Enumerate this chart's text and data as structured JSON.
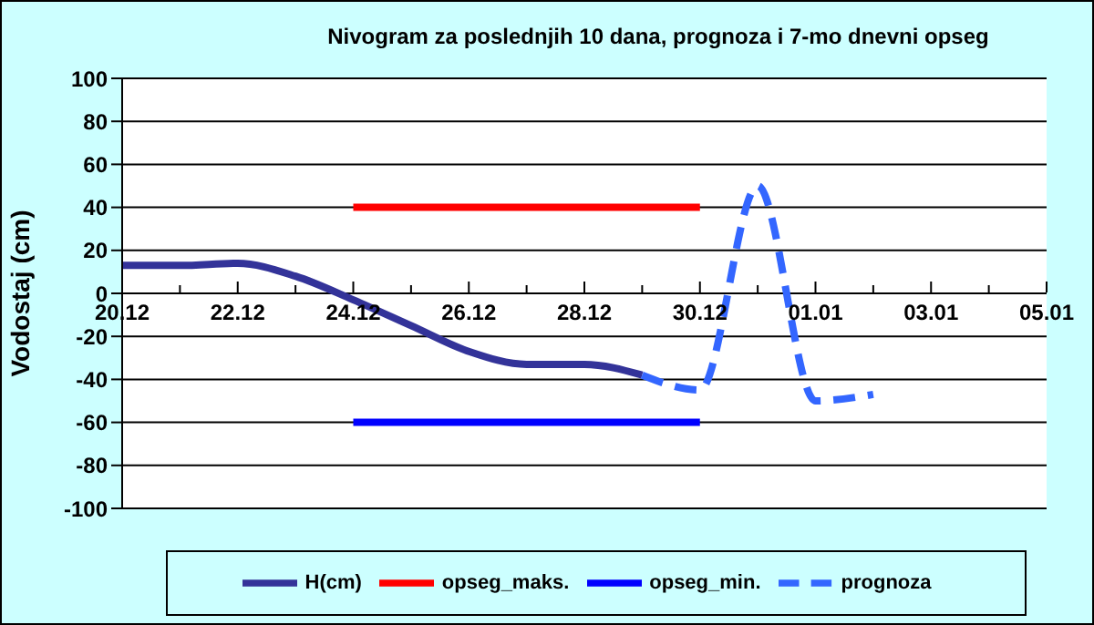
{
  "chart_data": {
    "type": "line",
    "title": "Nivogram za poslednjih 10 dana, prognoza i 7-mo dnevni opseg",
    "ylabel": "Vodostaj (cm)",
    "categories": [
      "20.12",
      null,
      "22.12",
      null,
      "24.12",
      null,
      "26.12",
      null,
      "28.12",
      null,
      "30.12",
      null,
      "01.01",
      null,
      "03.01",
      null,
      "05.01"
    ],
    "ylim": [
      -100,
      100
    ],
    "yticks": [
      -100,
      -80,
      -60,
      -40,
      -20,
      0,
      20,
      40,
      60,
      80,
      100
    ],
    "grid": "y",
    "legend": "bottom",
    "marker": "none",
    "series": [
      {
        "name": "H(cm)",
        "color": "#333399",
        "values": [
          13,
          13,
          14,
          8,
          -3,
          -15,
          -27,
          -33,
          -33,
          -38,
          null,
          null,
          null,
          null,
          null,
          null,
          null
        ]
      },
      {
        "name": "opseg_min.",
        "color": "#0000ff",
        "values": [
          null,
          null,
          null,
          null,
          -60,
          -60,
          -60,
          -60,
          -60,
          -60,
          -60,
          null,
          null,
          null,
          null,
          null,
          null
        ]
      },
      {
        "name": "opseg_maks.",
        "color": "#ff0000",
        "values": [
          null,
          null,
          null,
          null,
          40,
          40,
          40,
          40,
          40,
          40,
          40,
          null,
          null,
          null,
          null,
          null,
          null
        ]
      },
      {
        "name": "prognoza",
        "color": "#3366ff",
        "line_style": "dashed",
        "values": [
          null,
          null,
          null,
          null,
          null,
          null,
          null,
          null,
          null,
          -38,
          -45,
          50,
          -50,
          -47,
          null,
          null,
          null
        ]
      }
    ]
  }
}
